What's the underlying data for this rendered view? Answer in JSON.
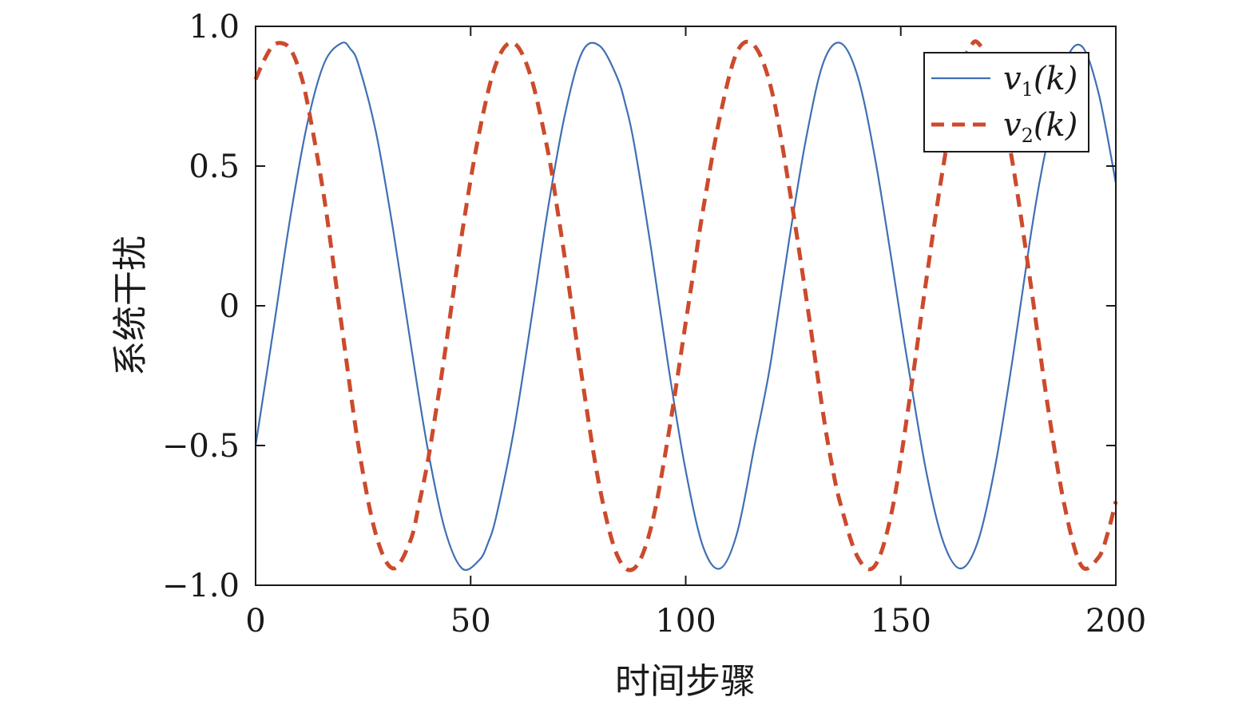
{
  "chart_data": {
    "type": "line",
    "title": "",
    "xlabel": "时间步骤",
    "ylabel": "系统干扰",
    "xlim": [
      0,
      200
    ],
    "ylim": [
      -1.0,
      1.0
    ],
    "xticks": [
      0,
      50,
      100,
      150,
      200
    ],
    "xtick_labels": [
      "0",
      "50",
      "100",
      "150",
      "200"
    ],
    "yticks": [
      -1.0,
      -0.5,
      0,
      0.5,
      1.0
    ],
    "ytick_labels": [
      "−1.0",
      "−0.5",
      "0",
      "0.5",
      "1.0"
    ],
    "grid": false,
    "legend_position": "top-right",
    "series": [
      {
        "name": "v1(k)",
        "name_base": "v",
        "name_sub": "1",
        "name_arg": "(k)",
        "color": "#3f6fb5",
        "line_style": "solid",
        "x": [
          0,
          4,
          8,
          12,
          16,
          20,
          22,
          24,
          28,
          32,
          36,
          40,
          44,
          48,
          52,
          54,
          56,
          60,
          64,
          68,
          72,
          76,
          80,
          84,
          86,
          88,
          92,
          96,
          100,
          104,
          108,
          112,
          116,
          118,
          120,
          124,
          128,
          132,
          136,
          140,
          144,
          148,
          150,
          152,
          156,
          160,
          164,
          168,
          172,
          176,
          180,
          182,
          184,
          188,
          192,
          196,
          200
        ],
        "values": [
          -0.5,
          -0.1,
          0.31,
          0.65,
          0.87,
          0.94,
          0.92,
          0.86,
          0.62,
          0.27,
          -0.13,
          -0.51,
          -0.8,
          -0.94,
          -0.91,
          -0.85,
          -0.75,
          -0.45,
          -0.06,
          0.35,
          0.69,
          0.91,
          0.93,
          0.82,
          0.72,
          0.58,
          0.2,
          -0.22,
          -0.59,
          -0.86,
          -0.94,
          -0.81,
          -0.5,
          -0.35,
          -0.18,
          0.23,
          0.6,
          0.87,
          0.94,
          0.82,
          0.53,
          0.15,
          -0.05,
          -0.24,
          -0.6,
          -0.85,
          -0.94,
          -0.84,
          -0.57,
          -0.19,
          0.23,
          0.42,
          0.58,
          0.86,
          0.93,
          0.76,
          0.44
        ]
      },
      {
        "name": "v2(k)",
        "name_base": "v",
        "name_sub": "2",
        "name_arg": "(k)",
        "color": "#cc4a2c",
        "line_style": "dashed",
        "x": [
          0,
          2,
          4,
          6,
          8,
          10,
          12,
          16,
          20,
          24,
          28,
          32,
          36,
          38,
          40,
          42,
          44,
          48,
          52,
          56,
          60,
          64,
          68,
          70,
          72,
          76,
          80,
          84,
          88,
          92,
          96,
          100,
          102,
          104,
          108,
          112,
          116,
          120,
          124,
          128,
          132,
          134,
          136,
          140,
          144,
          148,
          152,
          156,
          160,
          164,
          166,
          168,
          172,
          176,
          180,
          184,
          188,
          192,
          196,
          198,
          200
        ],
        "values": [
          0.81,
          0.88,
          0.93,
          0.94,
          0.92,
          0.85,
          0.73,
          0.38,
          -0.07,
          -0.51,
          -0.82,
          -0.94,
          -0.84,
          -0.71,
          -0.56,
          -0.37,
          -0.17,
          0.26,
          0.62,
          0.87,
          0.94,
          0.82,
          0.55,
          0.36,
          0.16,
          -0.27,
          -0.65,
          -0.89,
          -0.94,
          -0.79,
          -0.46,
          -0.06,
          0.14,
          0.34,
          0.68,
          0.91,
          0.93,
          0.77,
          0.43,
          0.03,
          -0.39,
          -0.57,
          -0.71,
          -0.9,
          -0.93,
          -0.73,
          -0.34,
          0.1,
          0.51,
          0.84,
          0.92,
          0.94,
          0.82,
          0.51,
          0.1,
          -0.34,
          -0.71,
          -0.93,
          -0.9,
          -0.82,
          -0.7
        ]
      }
    ]
  }
}
